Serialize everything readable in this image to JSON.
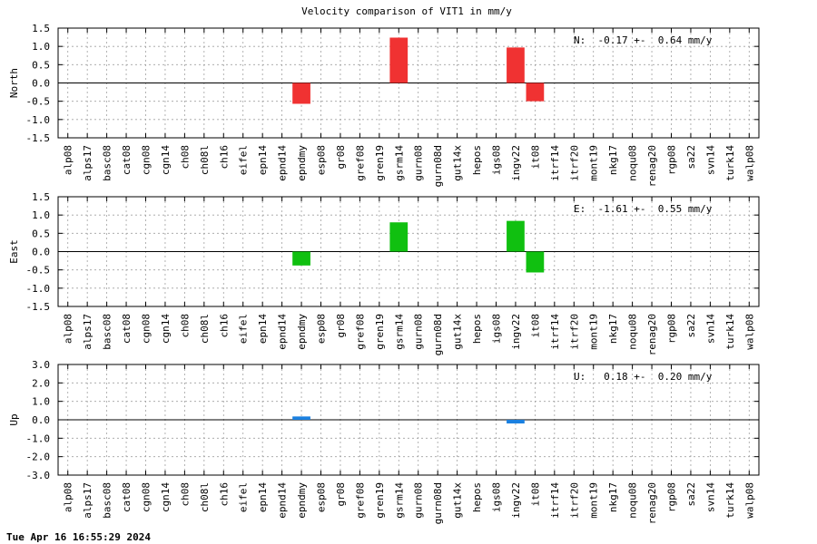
{
  "title": "Velocity comparison of VIT1 in mm/y",
  "timestamp": "Tue Apr 16 16:55:29 2024",
  "chart_data": {
    "type": "bar",
    "categories": [
      "alp08",
      "alps17",
      "basc08",
      "cat08",
      "cgn08",
      "cgn14",
      "ch08",
      "ch08l",
      "ch16",
      "eifel",
      "epn14",
      "epnd14",
      "epndmy",
      "esp08",
      "gr08",
      "gref08",
      "gren19",
      "gsrm14",
      "gurn08",
      "gurn08d",
      "gut14x",
      "hepos",
      "igs08",
      "ingv22",
      "it08",
      "itrf14",
      "itrf20",
      "mont19",
      "nkg17",
      "noqu08",
      "renag20",
      "rgp08",
      "sa22",
      "svn14",
      "turk14",
      "walp08"
    ],
    "panels": [
      {
        "ylabel": "North",
        "ylim": [
          -1.5,
          1.5
        ],
        "yticks": [
          "1.5",
          "1.0",
          "0.5",
          "0.0",
          "-0.5",
          "-1.0",
          "-1.5"
        ],
        "ytick_values": [
          1.5,
          1.0,
          0.5,
          0.0,
          -0.5,
          -1.0,
          -1.5
        ],
        "color": "#f03232",
        "annotation": "N:  -0.17 +-  0.64 mm/y",
        "values": [
          0,
          0,
          0,
          0,
          0,
          0,
          0,
          0,
          0,
          0,
          0,
          0,
          -0.57,
          0,
          0,
          0,
          0,
          1.24,
          0,
          0,
          0,
          0,
          0,
          0.97,
          -0.5,
          0,
          0,
          0,
          0,
          0,
          0,
          0,
          0,
          0,
          0,
          0
        ]
      },
      {
        "ylabel": "East",
        "ylim": [
          -1.5,
          1.5
        ],
        "yticks": [
          "1.5",
          "1.0",
          "0.5",
          "0.0",
          "-0.5",
          "-1.0",
          "-1.5"
        ],
        "ytick_values": [
          1.5,
          1.0,
          0.5,
          0.0,
          -0.5,
          -1.0,
          -1.5
        ],
        "color": "#10c010",
        "annotation": "E:  -1.61 +-  0.55 mm/y",
        "values": [
          0,
          0,
          0,
          0,
          0,
          0,
          0,
          0,
          0,
          0,
          0,
          0,
          -0.38,
          0,
          0,
          0,
          0,
          0.8,
          0,
          0,
          0,
          0,
          0,
          0.84,
          -0.57,
          0,
          0,
          0,
          0,
          0,
          0,
          0,
          0,
          0,
          0,
          0
        ]
      },
      {
        "ylabel": "Up",
        "ylim": [
          -3.0,
          3.0
        ],
        "yticks": [
          "3.0",
          "2.0",
          "1.0",
          "0.0",
          "-1.0",
          "-2.0",
          "-3.0"
        ],
        "ytick_values": [
          3.0,
          2.0,
          1.0,
          0.0,
          -1.0,
          -2.0,
          -3.0
        ],
        "color": "#1a80e0",
        "annotation": "U:   0.18 +-  0.20 mm/y",
        "values": [
          0,
          0,
          0,
          0,
          0,
          0,
          0,
          0,
          0,
          0,
          0,
          0,
          0.18,
          0,
          0,
          0,
          0,
          0,
          0,
          0,
          0,
          0,
          0,
          -0.2,
          0,
          0,
          0,
          0,
          0,
          0,
          0,
          0,
          0,
          0,
          0,
          0
        ]
      }
    ],
    "grid": true
  }
}
